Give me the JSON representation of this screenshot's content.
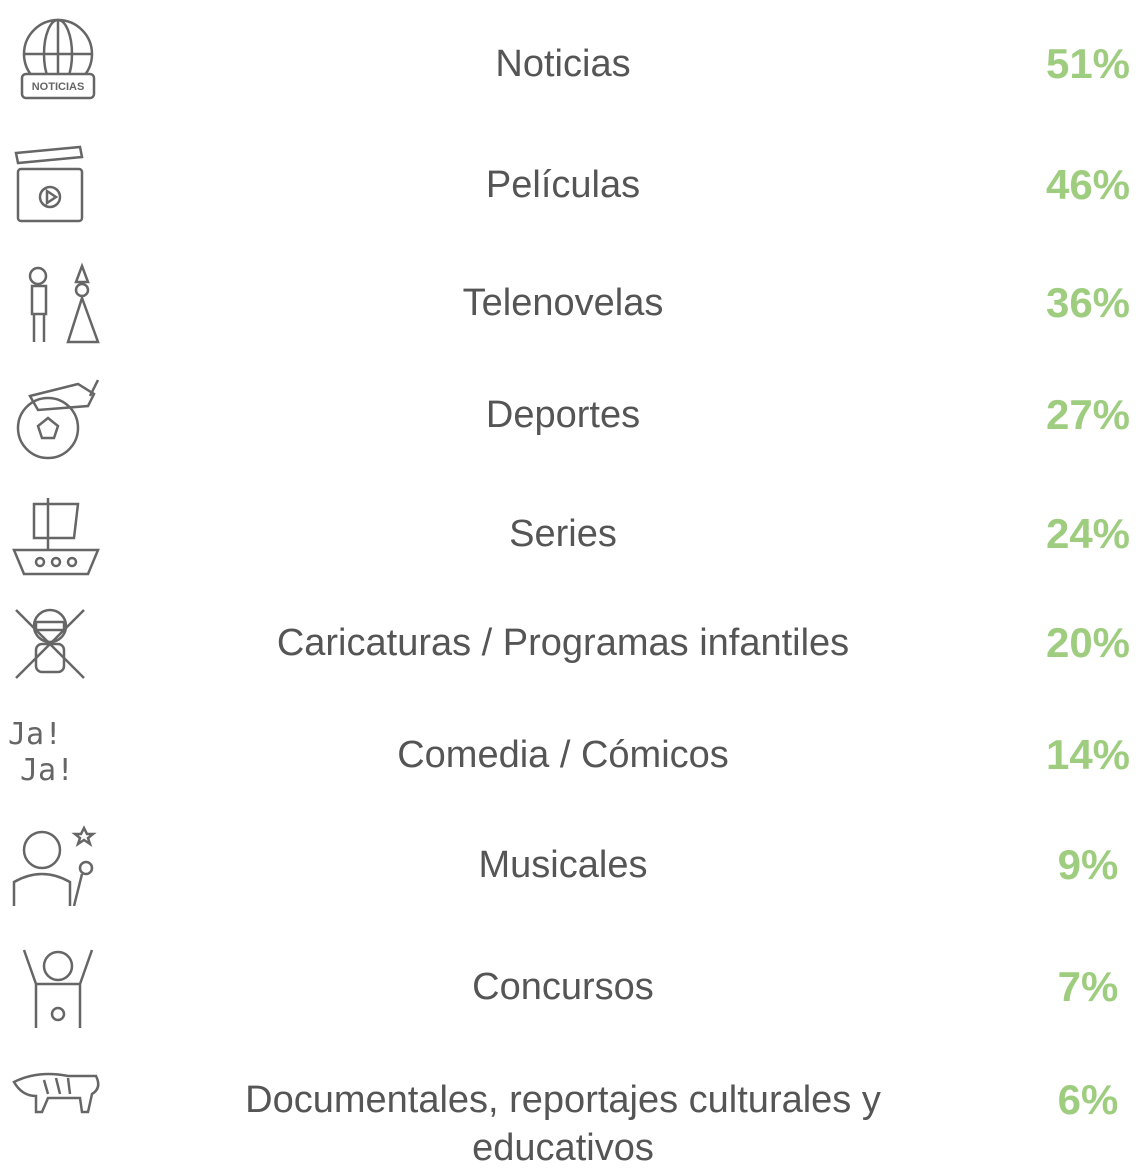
{
  "items": [
    {
      "label": "Noticias",
      "value": "51%"
    },
    {
      "label": "Películas",
      "value": "46%"
    },
    {
      "label": "Telenovelas",
      "value": "36%"
    },
    {
      "label": "Deportes",
      "value": "27%"
    },
    {
      "label": "Series",
      "value": "24%"
    },
    {
      "label": "Caricaturas / Programas infantiles",
      "value": "20%"
    },
    {
      "label": "Comedia / Cómicos",
      "value": "14%"
    },
    {
      "label": "Musicales",
      "value": "9%"
    },
    {
      "label": "Concursos",
      "value": "7%"
    },
    {
      "label": "Documentales, reportajes culturales y educativos",
      "value": "6%"
    }
  ],
  "icon_texts": {
    "news": "NOTICIAS",
    "laugh_1": "Ja!",
    "laugh_2": "Ja!"
  }
}
